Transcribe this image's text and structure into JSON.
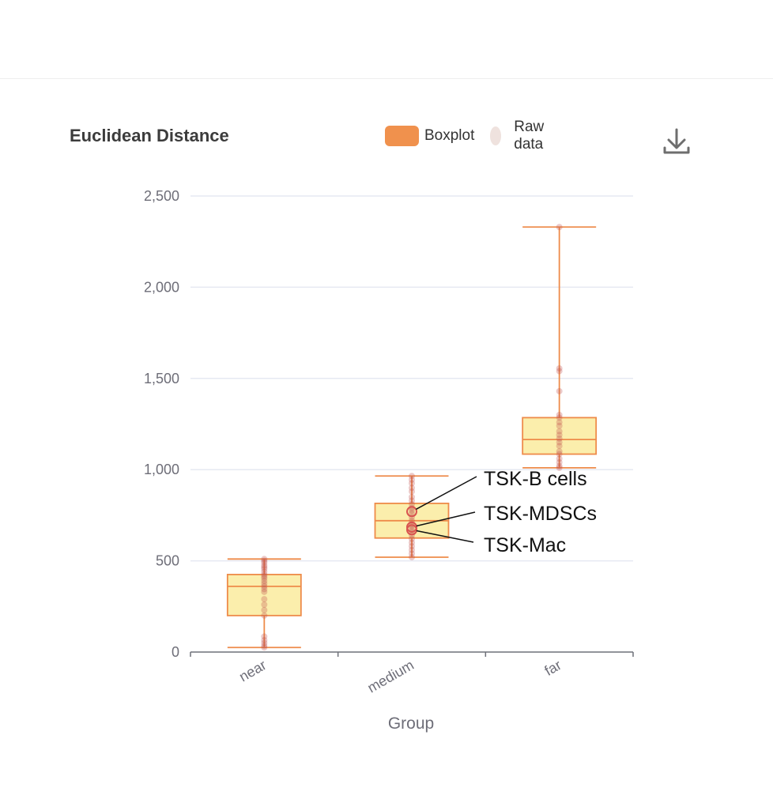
{
  "chart_data": {
    "type": "boxplot",
    "title": "Euclidean Distance",
    "xlabel": "Group",
    "ylabel": "",
    "ylim": [
      0,
      2500
    ],
    "yticks": [
      0,
      500,
      1000,
      1500,
      2000,
      2500
    ],
    "ytick_labels": [
      "0",
      "500",
      "1,000",
      "1,500",
      "2,000",
      "2,500"
    ],
    "categories": [
      "near",
      "medium",
      "far"
    ],
    "legend": [
      "Boxplot",
      "Raw data"
    ],
    "colors": {
      "box_fill": "#fbeeac",
      "box_stroke": "#ee8b4a",
      "whisker": "#ee8b4a",
      "point": "#c0504d",
      "legend_box": "#f0914d",
      "legend_dot": "#efe2de",
      "grid": "#e6e9f2",
      "axis": "#6e7079",
      "annot_circle": "#d9534f"
    },
    "boxes": [
      {
        "category": "near",
        "min": 25,
        "q1": 200,
        "median": 360,
        "q3": 425,
        "max": 510
      },
      {
        "category": "medium",
        "min": 520,
        "q1": 625,
        "median": 720,
        "q3": 815,
        "max": 965
      },
      {
        "category": "far",
        "min": 1010,
        "q1": 1085,
        "median": 1165,
        "q3": 1285,
        "max": 2330
      }
    ],
    "raw_data": [
      {
        "category": "near",
        "values": [
          25,
          35,
          50,
          65,
          85,
          200,
          230,
          260,
          290,
          330,
          345,
          360,
          375,
          390,
          405,
          415,
          425,
          440,
          455,
          465,
          475,
          490,
          500,
          510
        ]
      },
      {
        "category": "medium",
        "values": [
          520,
          540,
          560,
          580,
          600,
          620,
          640,
          660,
          672,
          690,
          700,
          720,
          740,
          760,
          775,
          790,
          810,
          830,
          850,
          880,
          900,
          925,
          945,
          965
        ]
      },
      {
        "category": "far",
        "values": [
          1010,
          1020,
          1040,
          1060,
          1085,
          1100,
          1130,
          1150,
          1170,
          1190,
          1210,
          1240,
          1260,
          1285,
          1300,
          1430,
          1540,
          1555,
          2330
        ]
      }
    ],
    "annotations": [
      {
        "label": "TSK-B cells",
        "category": "medium",
        "value": 770
      },
      {
        "label": "TSK-MDSCs",
        "category": "medium",
        "value": 685
      },
      {
        "label": "TSK-Mac",
        "category": "medium",
        "value": 670
      }
    ]
  },
  "toolbar": {
    "download_icon": "download-icon"
  }
}
